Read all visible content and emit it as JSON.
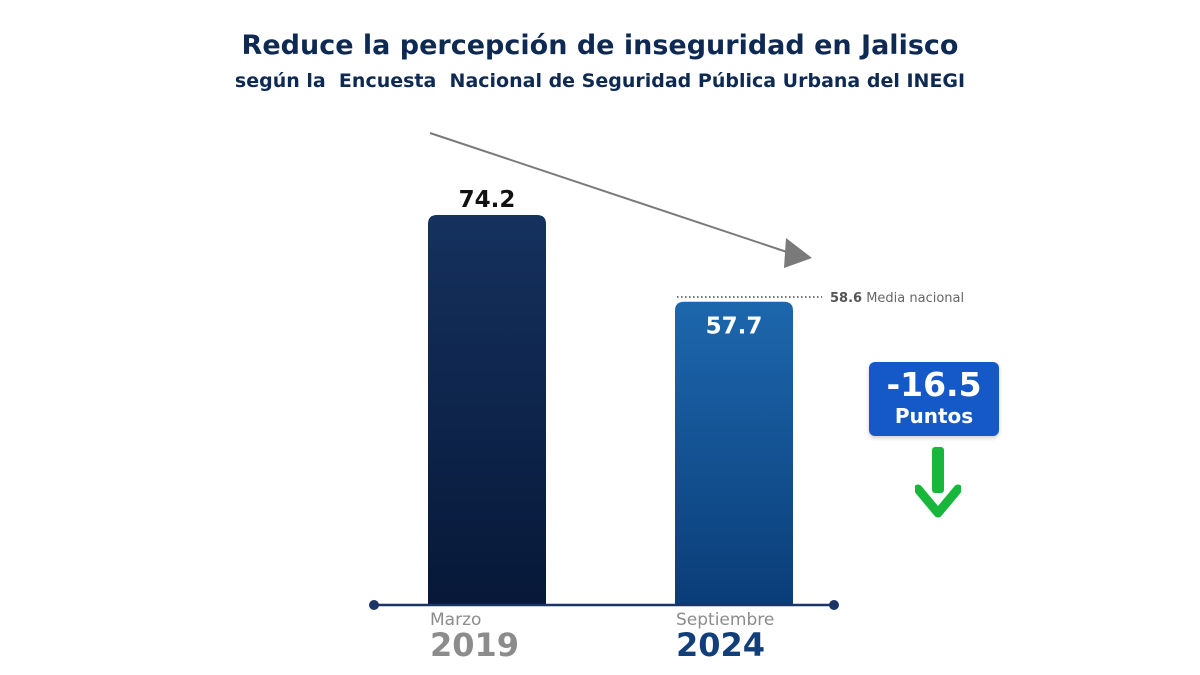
{
  "header": {
    "title_bold": "Reduce",
    "title_rest": " la percepción de inseguridad en Jalisco",
    "subtitle": "según la  Encuesta  Nacional de Seguridad Pública Urbana del INEGI"
  },
  "chart_data": {
    "type": "bar",
    "title": "Reduce la percepción de inseguridad en Jalisco",
    "subtitle": "según la  Encuesta  Nacional de Seguridad Pública Urbana del INEGI",
    "categories": [
      {
        "month": "Marzo",
        "year": "2019"
      },
      {
        "month": "Septiembre",
        "year": "2024"
      }
    ],
    "values": [
      74.2,
      57.7
    ],
    "value_labels": [
      "74.2",
      "57.7"
    ],
    "ylim": [
      0,
      80
    ],
    "grid": false,
    "colors": {
      "bar_2019": [
        "#15315e",
        "#071838"
      ],
      "bar_2024": [
        "#1d67ad",
        "#0a3d78"
      ],
      "year_2019": "#8c8c8c",
      "year_2024": "#123f7a",
      "reference_line": "#444444",
      "trend_arrow": "#7a7a7a"
    },
    "reference_line": {
      "value": 58.6,
      "value_label": "58.6",
      "label": "Media nacional"
    },
    "annotations": [
      {
        "type": "difference-badge",
        "value": "-16.5",
        "label": "Puntos",
        "color": "#1559c9"
      },
      {
        "type": "decrease-arrow",
        "icon": "down-arrow-icon",
        "color": "#18b73c"
      },
      {
        "type": "trend-arrow",
        "icon": "trend-arrow-icon",
        "direction": "down-right"
      }
    ]
  }
}
